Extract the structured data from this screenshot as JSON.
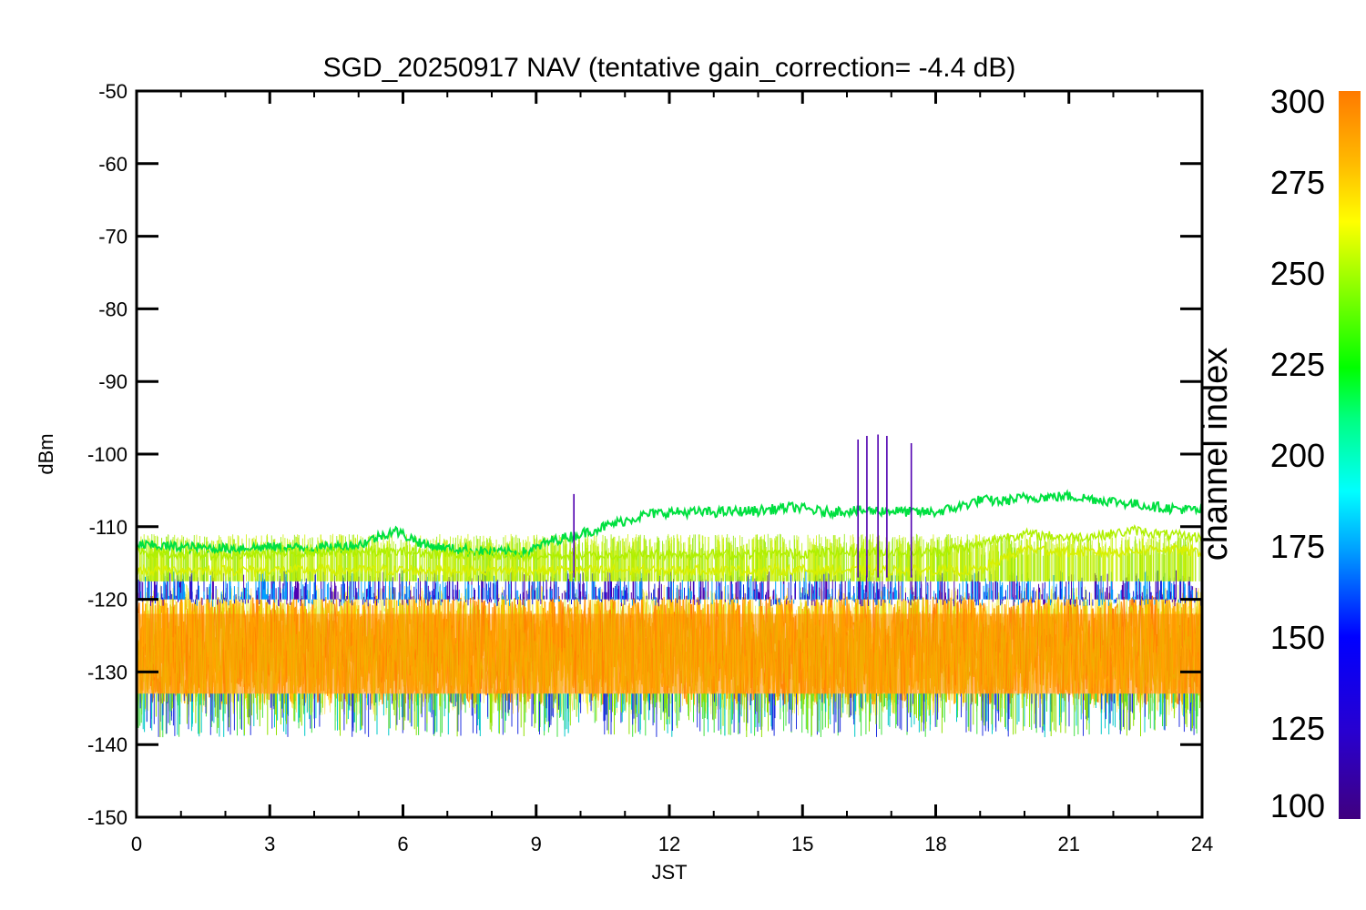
{
  "chart_data": {
    "type": "line",
    "title": "SGD_20250917 NAV (tentative gain_correction= -4.4 dB)",
    "xlabel": "JST",
    "ylabel": "dBm",
    "xlim": [
      0,
      24
    ],
    "ylim": [
      -150,
      -50
    ],
    "x_ticks": [
      "0",
      "3",
      "6",
      "9",
      "12",
      "15",
      "18",
      "21",
      "24"
    ],
    "y_ticks": [
      "-50",
      "-60",
      "-70",
      "-80",
      "-90",
      "-100",
      "-110",
      "-120",
      "-130",
      "-140",
      "-150"
    ],
    "colorbar": {
      "label": "channel index",
      "range": [
        100,
        300
      ],
      "ticks": [
        "300",
        "275",
        "250",
        "225",
        "200",
        "175",
        "150",
        "125",
        "100"
      ],
      "colormap": "rainbow (violet-blue-cyan-green-yellow-orange)"
    },
    "series": [
      {
        "color_channel": 215,
        "color": "#00e040",
        "x": [
          0,
          1,
          2,
          3,
          4,
          5,
          5.8,
          6.5,
          7,
          8,
          8.8,
          9.3,
          10,
          10.8,
          11.5,
          12,
          13,
          14,
          14.8,
          15.5,
          16,
          17,
          17.5,
          18,
          18.5,
          19,
          19.5,
          20,
          21,
          22,
          23,
          24
        ],
        "y": [
          -112.5,
          -112.8,
          -113,
          -112.8,
          -113,
          -112.5,
          -110.5,
          -112.5,
          -113,
          -113.5,
          -113.5,
          -112,
          -111,
          -109.5,
          -108.3,
          -108,
          -108,
          -107.8,
          -107.3,
          -108,
          -107.8,
          -107.8,
          -108,
          -108,
          -107.3,
          -106.3,
          -106.5,
          -106,
          -105.8,
          -106.5,
          -107.3,
          -107.8
        ]
      },
      {
        "color_channel": 255,
        "color": "#b0f000",
        "x": [
          0,
          2,
          4,
          6,
          8,
          10,
          12,
          14,
          16,
          18,
          19,
          19.5,
          20,
          21,
          22,
          22.5,
          23,
          24
        ],
        "y": [
          -113.5,
          -114,
          -113.5,
          -113.5,
          -114,
          -114,
          -113.8,
          -113.8,
          -113.5,
          -113.5,
          -112.5,
          -111.5,
          -111,
          -111.5,
          -111,
          -110.5,
          -111,
          -111.5
        ]
      },
      {
        "color_channel": 262,
        "color": "#d8f000",
        "x": [
          0,
          4,
          8,
          12,
          16,
          19,
          20,
          21,
          22,
          23,
          24
        ],
        "y": [
          -116,
          -116,
          -116,
          -116,
          -116,
          -116,
          -113,
          -113.5,
          -113.5,
          -113,
          -113.5
        ]
      }
    ],
    "noise_bands": [
      {
        "label": "channels 260-300",
        "color": "#ff8800",
        "y_min": -135,
        "y_max": -119
      },
      {
        "label": "channels 130-170",
        "color": "#0000e0",
        "y_min": -121,
        "y_max": -116
      }
    ],
    "spikes": [
      {
        "x": 9.85,
        "y_peak": -105.5,
        "color": "#5000b0"
      },
      {
        "x": 16.25,
        "y_peak": -98,
        "color": "#5000b0"
      },
      {
        "x": 16.45,
        "y_peak": -97.5,
        "color": "#5000b0"
      },
      {
        "x": 16.7,
        "y_peak": -97.3,
        "color": "#5000b0"
      },
      {
        "x": 16.9,
        "y_peak": -97.5,
        "color": "#5000b0"
      },
      {
        "x": 17.45,
        "y_peak": -98.5,
        "color": "#5000b0"
      }
    ],
    "grid": false,
    "legend": "colorbar-right"
  }
}
